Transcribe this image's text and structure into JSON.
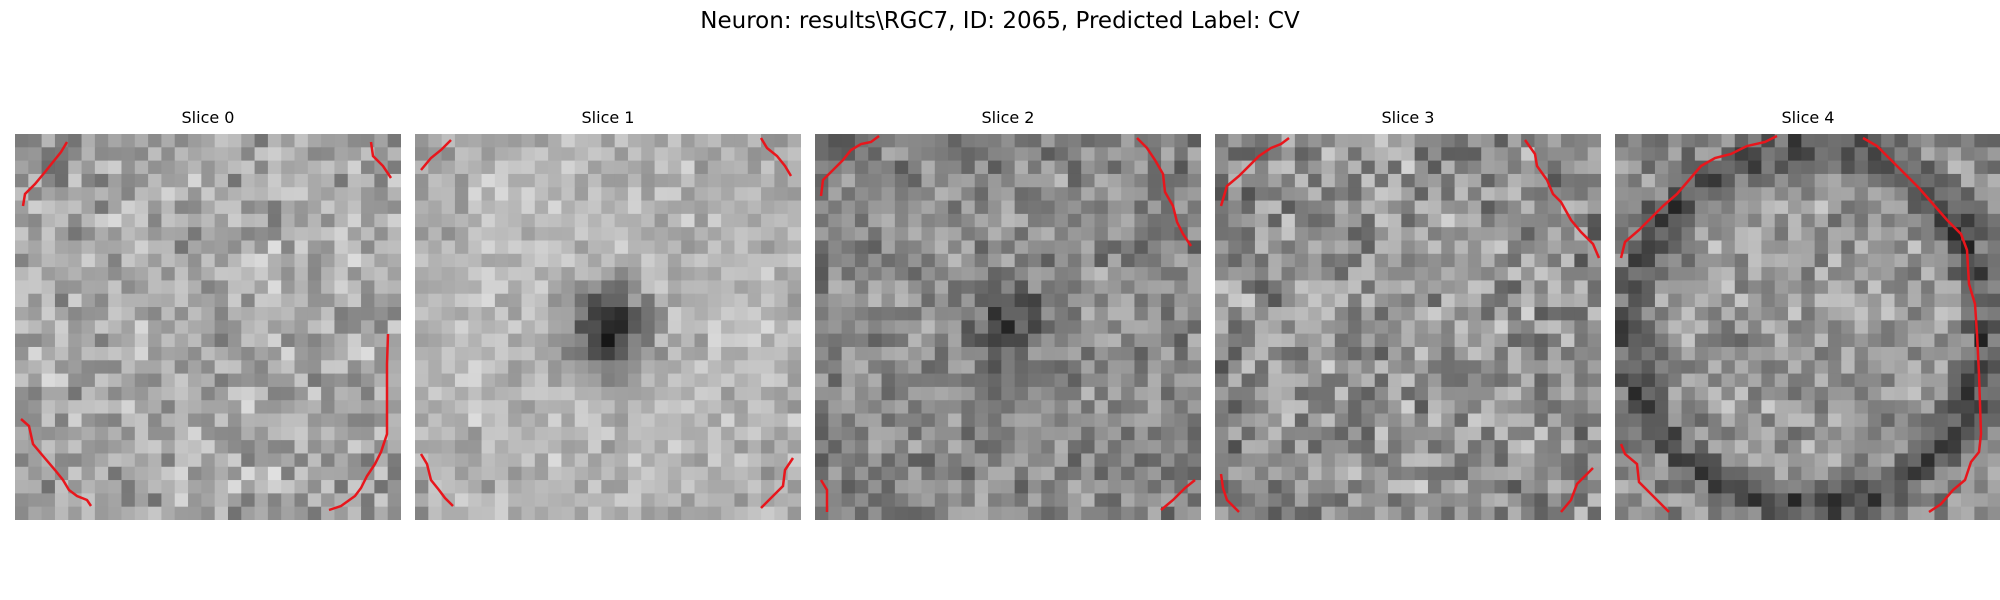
{
  "figure": {
    "title": "Neuron: results\\RGC7, ID: 2065, Predicted Label: CV"
  },
  "colors": {
    "contour": "#e8161c",
    "pixel_low": "#000000",
    "pixel_high": "#ffffff"
  },
  "panels": [
    {
      "title": "Slice 0",
      "pattern": "uniform-noise",
      "center_dark": 0.0,
      "brightness": 0.66,
      "contrast": 0.16,
      "seed": 11
    },
    {
      "title": "Slice 1",
      "pattern": "dark-center-spot",
      "center_dark": 0.55,
      "brightness": 0.72,
      "contrast": 0.1,
      "seed": 23
    },
    {
      "title": "Slice 2",
      "pattern": "dark-center-spot",
      "center_dark": 0.25,
      "brightness": 0.55,
      "contrast": 0.15,
      "seed": 37
    },
    {
      "title": "Slice 3",
      "pattern": "uniform-noise",
      "center_dark": 0.05,
      "brightness": 0.58,
      "contrast": 0.2,
      "seed": 51
    },
    {
      "title": "Slice 4",
      "pattern": "dark-ring",
      "center_dark": 0.0,
      "brightness": 0.6,
      "contrast": 0.15,
      "seed": 67
    }
  ]
}
